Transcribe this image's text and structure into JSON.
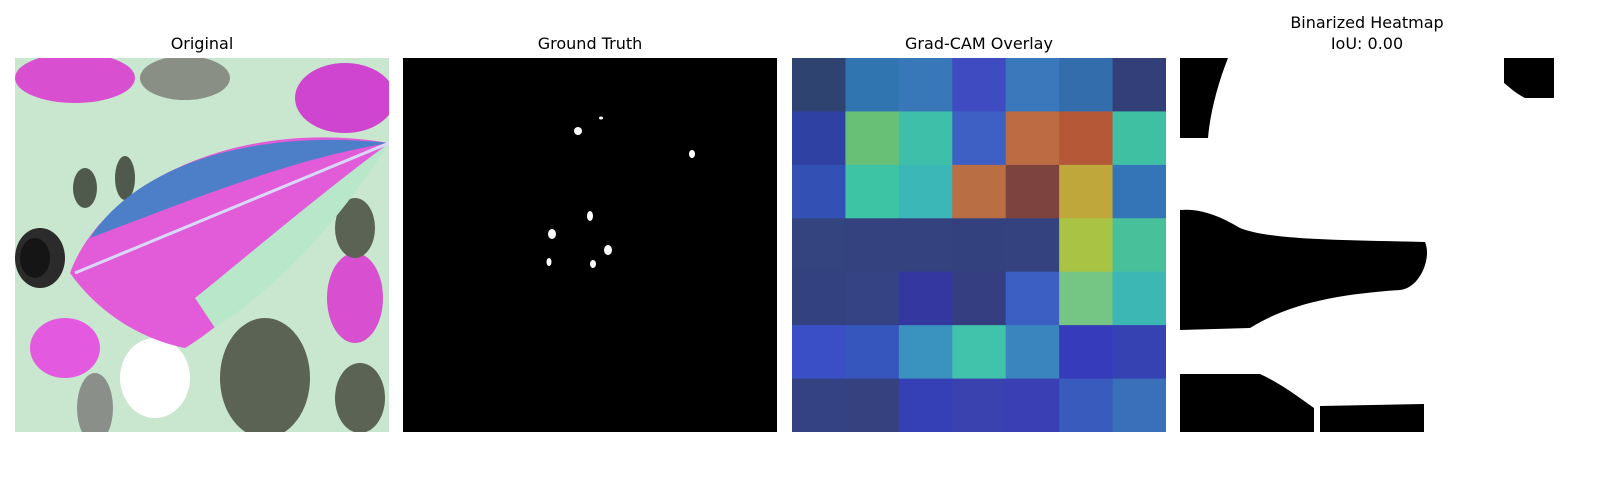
{
  "panels": {
    "original": {
      "title": "Original"
    },
    "ground_truth": {
      "title": "Ground Truth"
    },
    "gradcam": {
      "title": "Grad-CAM Overlay"
    },
    "binarized": {
      "title_line1": "Binarized Heatmap",
      "title_line2": "IoU: 0.00"
    }
  },
  "gradcam_grid": [
    [
      "#2e4370",
      "#3175b0",
      "#3878b8",
      "#3f4bc1",
      "#3a78bb",
      "#346dab",
      "#333f78"
    ],
    [
      "#3041a4",
      "#68c076",
      "#3dbfaa",
      "#3e5fc4",
      "#bd6b43",
      "#b55837",
      "#3fc0a3"
    ],
    [
      "#3350b4",
      "#3dc4a4",
      "#3cb7b7",
      "#b96e44",
      "#7c433f",
      "#c0a73b",
      "#3475b8"
    ],
    [
      "#33447e",
      "#34437f",
      "#34427f",
      "#33427f",
      "#34427f",
      "#a9c444",
      "#48c19b"
    ],
    [
      "#334181",
      "#354284",
      "#3437a0",
      "#353e81",
      "#3b5fc2",
      "#75c584",
      "#3db7b4"
    ],
    [
      "#3a4fc5",
      "#3756bd",
      "#3a92bf",
      "#40c2ab",
      "#3a85bd",
      "#363bbc",
      "#3641b2"
    ],
    [
      "#344283",
      "#364280",
      "#3640b6",
      "#3a42b0",
      "#3a40b3",
      "#385bbd",
      "#3a6fb9"
    ]
  ]
}
